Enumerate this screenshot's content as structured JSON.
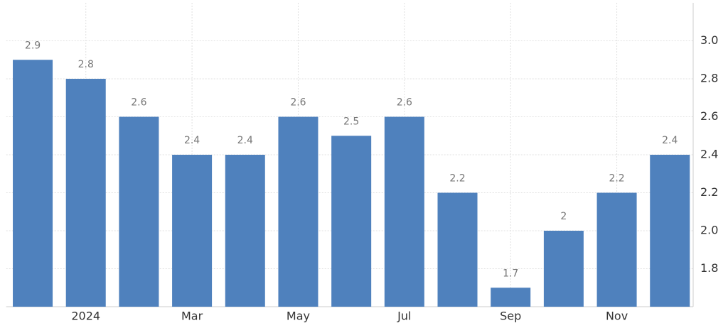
{
  "chart_data": {
    "type": "bar",
    "categories": [
      null,
      "2024",
      null,
      "Mar",
      null,
      "May",
      null,
      "Jul",
      null,
      "Sep",
      null,
      "Nov",
      null
    ],
    "values": [
      2.9,
      2.8,
      2.6,
      2.4,
      2.4,
      2.6,
      2.5,
      2.6,
      2.2,
      1.7,
      2,
      2.2,
      2.4
    ],
    "color": "#4f81bd",
    "ylim": [
      1.6,
      3.2
    ],
    "yticks": [
      1.8,
      {
        "value": 2.0,
        "label": "2.0"
      },
      2.2,
      2.4,
      2.6,
      2.8,
      {
        "value": 3.0,
        "label": "3.0"
      }
    ],
    "grid": true
  }
}
